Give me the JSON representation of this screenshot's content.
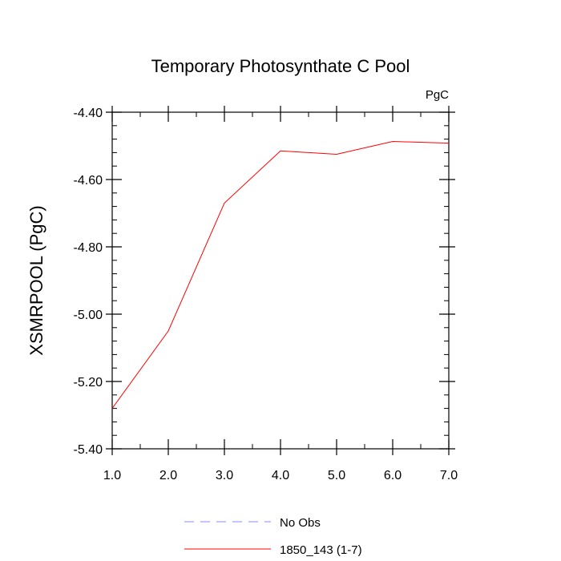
{
  "chart_data": {
    "type": "line",
    "title": "Temporary Photosynthate C Pool",
    "units_label": "PgC",
    "xlabel": "",
    "ylabel": "XSMRPOOL  (PgC)",
    "xlim": [
      1.0,
      7.0
    ],
    "ylim": [
      -5.4,
      -4.4
    ],
    "x_ticks": [
      1.0,
      2.0,
      3.0,
      4.0,
      5.0,
      6.0,
      7.0
    ],
    "x_tick_labels": [
      "1.0",
      "2.0",
      "3.0",
      "4.0",
      "5.0",
      "6.0",
      "7.0"
    ],
    "y_ticks": [
      -4.4,
      -4.6,
      -4.8,
      -5.0,
      -5.2,
      -5.4
    ],
    "y_tick_labels": [
      "-4.40",
      "-4.60",
      "-4.80",
      "-5.00",
      "-5.20",
      "-5.40"
    ],
    "y_minor_step": 0.04,
    "x_minor_step": 0.5,
    "grid": false,
    "legend_position": "bottom-center",
    "series": [
      {
        "name": "1850_143 (1-7)",
        "color": "#ff0000",
        "dash": "solid",
        "x": [
          1,
          2,
          3,
          4,
          5,
          6,
          7
        ],
        "values": [
          -5.28,
          -5.05,
          -4.67,
          -4.515,
          -4.525,
          -4.487,
          -4.492
        ]
      }
    ],
    "legend": [
      {
        "label": "No Obs",
        "color": "#8888ff",
        "dash": "dashed"
      },
      {
        "label": "1850_143 (1-7)",
        "color": "#ff0000",
        "dash": "solid"
      }
    ]
  }
}
